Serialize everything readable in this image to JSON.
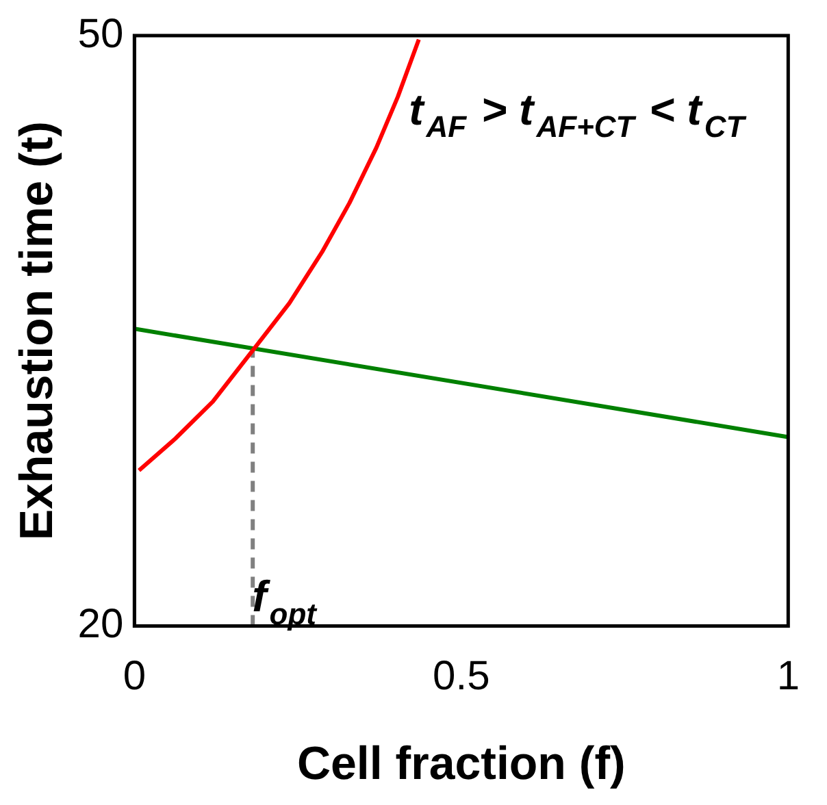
{
  "chart_data": {
    "type": "line",
    "xlabel": "Cell fraction (f)",
    "ylabel": "Exhaustion time (t)",
    "xlim": [
      0,
      1
    ],
    "xticks": [
      0,
      0.5,
      1
    ],
    "ylim": [
      20,
      50
    ],
    "yticks": [
      20,
      50
    ],
    "grid": false,
    "legend": false,
    "marker": "none",
    "line_style": "solid",
    "series": [
      {
        "color": "#ff0000",
        "x": [
          0.007,
          0.062,
          0.12,
          0.181,
          0.237,
          0.287,
          0.329,
          0.37,
          0.403,
          0.435
        ],
        "values": [
          27.9,
          29.5,
          31.4,
          34.0,
          36.4,
          39.0,
          41.5,
          44.3,
          46.9,
          49.8
        ]
      },
      {
        "color": "#008000",
        "x": [
          0,
          1
        ],
        "values": [
          35.1,
          29.6
        ]
      },
      {
        "color": "#808080",
        "line_style": "dashed",
        "x": [
          0.181,
          0.181
        ],
        "values": [
          20,
          34.0
        ]
      }
    ],
    "annotations": [
      "t$_{AF}$ > t$_{AF+CT}$ < t$_{CT}$",
      "f$_{opt}$"
    ]
  }
}
